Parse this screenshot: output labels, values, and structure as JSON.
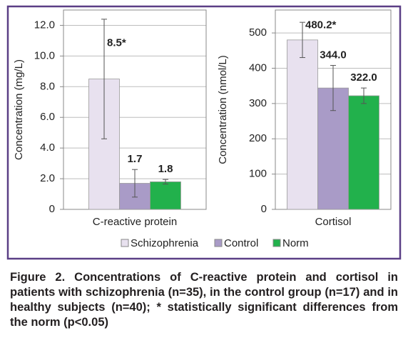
{
  "chart_data": [
    {
      "type": "bar",
      "categories": [
        "C-reactive protein"
      ],
      "y_label": "Concentration (mg/L)",
      "ylim": [
        0,
        13
      ],
      "yticks": [
        0,
        {
          "value": 2,
          "label": "2.0"
        },
        {
          "value": 4,
          "label": "4.0"
        },
        {
          "value": 6,
          "label": "6.0"
        },
        {
          "value": 8,
          "label": "8.0"
        },
        {
          "value": 10,
          "label": "10.0"
        },
        {
          "value": 12,
          "label": "12.0"
        }
      ],
      "grid": true,
      "series": [
        {
          "name": "Schizophrenia",
          "color": "#e8e1ef",
          "values": [
            8.5
          ],
          "value_labels": [
            "8.5*"
          ],
          "errors": [
            3.9
          ]
        },
        {
          "name": "Control",
          "color": "#a99bc7",
          "values": [
            1.7
          ],
          "errors": [
            0.9
          ]
        },
        {
          "name": "Norm",
          "color": "#22b14c",
          "values": [
            1.8
          ],
          "errors": [
            0.15
          ]
        }
      ]
    },
    {
      "type": "bar",
      "categories": [
        "Cortisol"
      ],
      "y_label": "Concentration (nmol/L)",
      "ylim": [
        0,
        565
      ],
      "yticks": [
        0,
        100,
        200,
        300,
        400,
        500
      ],
      "grid": true,
      "series": [
        {
          "color": "#e8e1ef",
          "values": [
            480.2
          ],
          "value_labels": [
            "480.2*"
          ],
          "errors": [
            50
          ]
        },
        {
          "color": "#a99bc7",
          "values": [
            344
          ],
          "value_labels": [
            "344.0"
          ],
          "errors": [
            64
          ]
        },
        {
          "color": "#22b14c",
          "values": [
            322
          ],
          "value_labels": [
            "322.0"
          ],
          "errors": [
            22
          ]
        }
      ]
    }
  ],
  "caption": "Figure 2. Concentrations of C-reactive protein and cortisol in patients with schizophrenia (n=35), in the control group (n=17) and in healthy subjects (n=40); * statistically significant differences from the norm (p<0.05)"
}
